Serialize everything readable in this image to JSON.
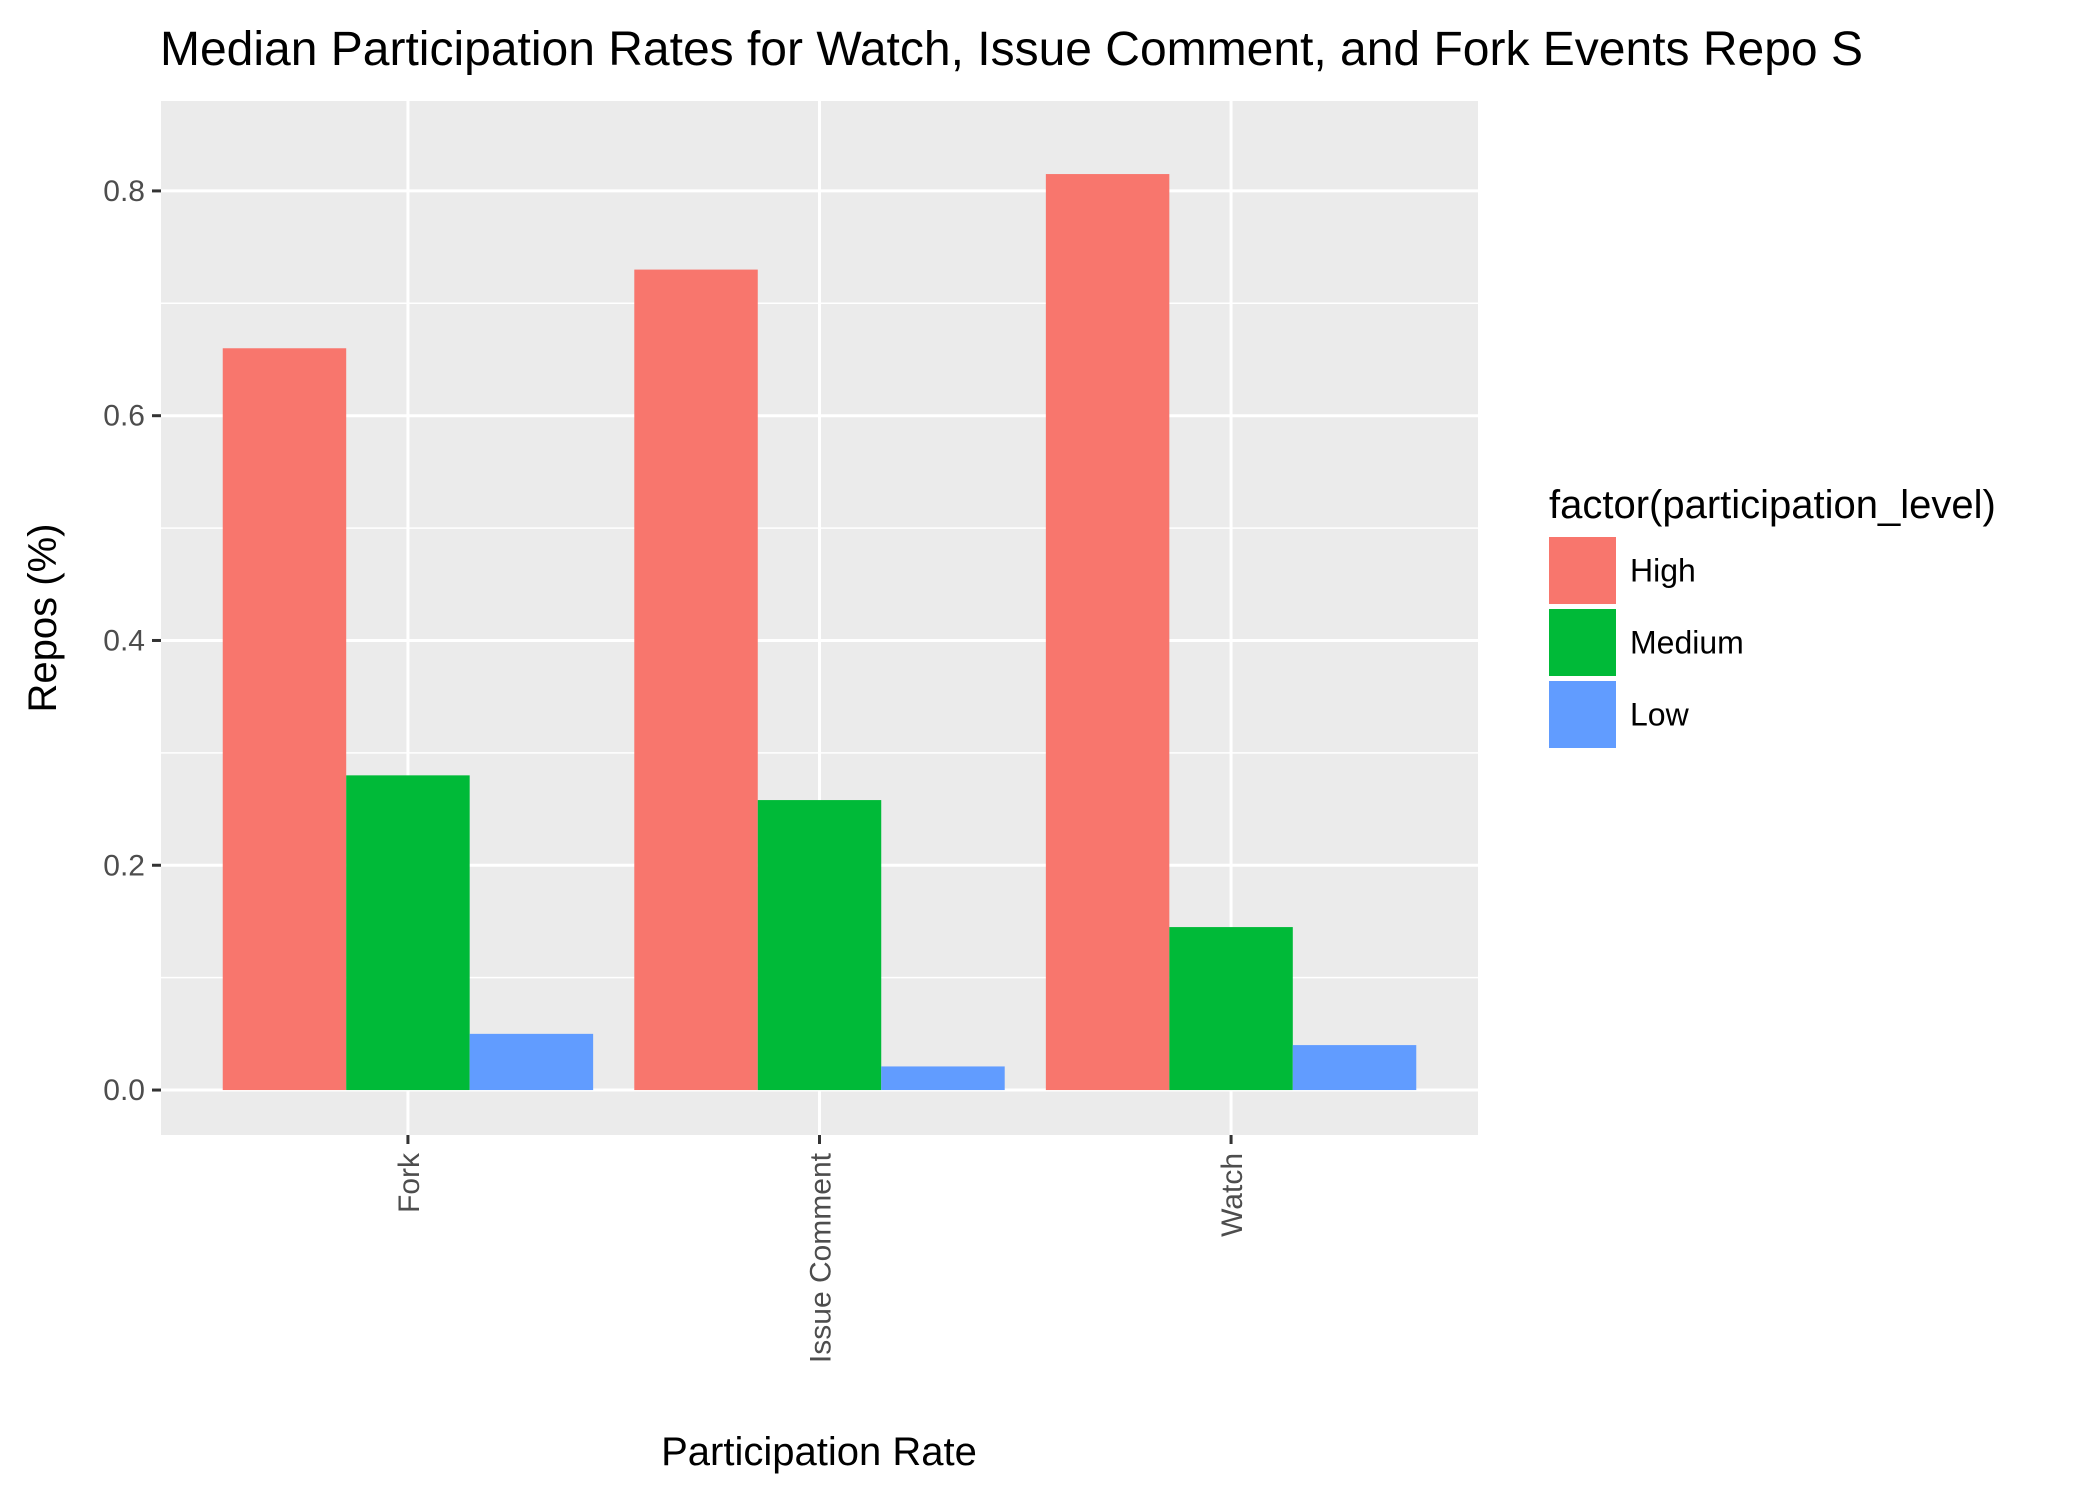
{
  "chart_data": {
    "type": "bar",
    "title": "Median Participation Rates for Watch, Issue Comment, and Fork Events Repo S",
    "xlabel": "Participation Rate",
    "ylabel": "Repos (%)",
    "categories": [
      "Fork",
      "Issue Comment",
      "Watch"
    ],
    "series": [
      {
        "name": "High",
        "color": "#F8766D",
        "values": [
          0.66,
          0.73,
          0.815
        ]
      },
      {
        "name": "Medium",
        "color": "#00BA38",
        "values": [
          0.28,
          0.258,
          0.145
        ]
      },
      {
        "name": "Low",
        "color": "#619CFF",
        "values": [
          0.05,
          0.021,
          0.04
        ]
      }
    ],
    "ylim": [
      -0.04,
      0.88
    ],
    "yticks": [
      "0.0",
      "0.2",
      "0.4",
      "0.6",
      "0.8"
    ],
    "ytick_values": [
      0,
      0.2,
      0.4,
      0.6,
      0.8
    ],
    "grid": true,
    "panel_background": "#EBEBEB",
    "legend": {
      "title": "factor(participation_level)",
      "position": "right",
      "items": [
        "High",
        "Medium",
        "Low"
      ]
    }
  }
}
